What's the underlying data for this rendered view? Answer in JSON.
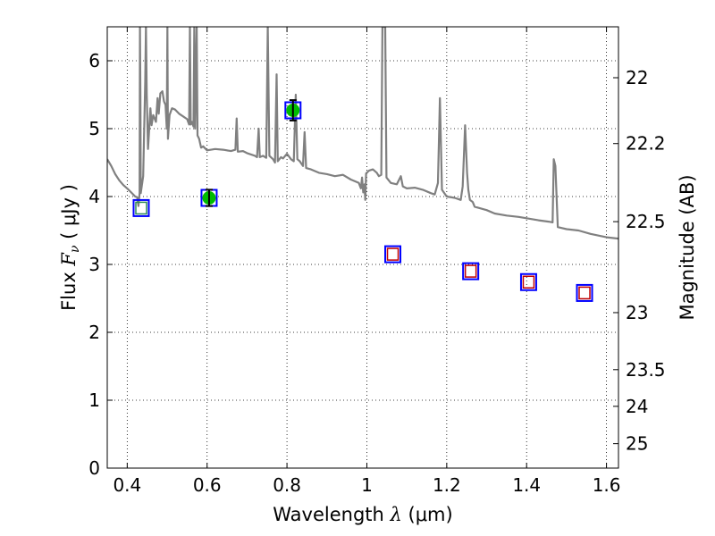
{
  "chart_data": {
    "type": "scatter",
    "xlabel": "Wavelength  λ (μm)",
    "ylabel": "Flux  F_ν  ( μJy )",
    "ylabel_parts": {
      "prefix": "Flux  ",
      "symbol": "F",
      "sub": "ν",
      "suffix": "  ( μJy )"
    },
    "xlabel_parts": {
      "prefix": "Wavelength  ",
      "symbol": "λ",
      "suffix": " (μm)"
    },
    "y2label": "Magnitude (AB)",
    "xlim": [
      0.35,
      1.63
    ],
    "ylim": [
      0,
      6.5
    ],
    "grid": true,
    "x_ticks": [
      0.4,
      0.6,
      0.8,
      1.0,
      1.2,
      1.4,
      1.6
    ],
    "x_tick_labels": [
      "0.4",
      "0.6",
      "0.8",
      "1",
      "1.2",
      "1.4",
      "1.6"
    ],
    "y_ticks": [
      0,
      1,
      2,
      3,
      4,
      5,
      6
    ],
    "y_tick_labels": [
      "0",
      "1",
      "2",
      "3",
      "4",
      "5",
      "6"
    ],
    "y2_ticks": [
      {
        "label": "22",
        "flux": 5.75
      },
      {
        "label": "22.2",
        "flux": 4.78
      },
      {
        "label": "22.5",
        "flux": 3.63
      },
      {
        "label": "23",
        "flux": 2.29
      },
      {
        "label": "23.5",
        "flux": 1.45
      },
      {
        "label": "24",
        "flux": 0.91
      },
      {
        "label": "25",
        "flux": 0.36
      }
    ],
    "series": [
      {
        "kind": "line",
        "color": "#808080",
        "points": [
          [
            0.35,
            4.55
          ],
          [
            0.36,
            4.45
          ],
          [
            0.37,
            4.33
          ],
          [
            0.38,
            4.24
          ],
          [
            0.39,
            4.17
          ],
          [
            0.4,
            4.12
          ],
          [
            0.41,
            4.06
          ],
          [
            0.42,
            4.0
          ],
          [
            0.425,
            3.99
          ],
          [
            0.428,
            3.86
          ],
          [
            0.431,
            4.05
          ],
          [
            0.432,
            6.5
          ],
          [
            0.433,
            5.5
          ],
          [
            0.434,
            4.05
          ],
          [
            0.44,
            4.3
          ],
          [
            0.445,
            5.7
          ],
          [
            0.447,
            6.5
          ],
          [
            0.449,
            5.5
          ],
          [
            0.452,
            4.7
          ],
          [
            0.458,
            5.3
          ],
          [
            0.461,
            5.05
          ],
          [
            0.465,
            5.2
          ],
          [
            0.472,
            5.1
          ],
          [
            0.476,
            5.45
          ],
          [
            0.479,
            5.22
          ],
          [
            0.483,
            5.52
          ],
          [
            0.488,
            5.55
          ],
          [
            0.492,
            5.4
          ],
          [
            0.496,
            5.35
          ],
          [
            0.499,
            5.0
          ],
          [
            0.5005,
            6.5
          ],
          [
            0.502,
            4.85
          ],
          [
            0.506,
            5.2
          ],
          [
            0.512,
            5.3
          ],
          [
            0.52,
            5.28
          ],
          [
            0.53,
            5.22
          ],
          [
            0.54,
            5.18
          ],
          [
            0.55,
            5.14
          ],
          [
            0.555,
            5.06
          ],
          [
            0.557,
            6.5
          ],
          [
            0.559,
            5.06
          ],
          [
            0.562,
            5.1
          ],
          [
            0.566,
            5.03
          ],
          [
            0.568,
            6.5
          ],
          [
            0.57,
            5.0
          ],
          [
            0.574,
            6.5
          ],
          [
            0.576,
            4.9
          ],
          [
            0.58,
            4.85
          ],
          [
            0.585,
            4.72
          ],
          [
            0.59,
            4.74
          ],
          [
            0.6,
            4.68
          ],
          [
            0.62,
            4.7
          ],
          [
            0.64,
            4.69
          ],
          [
            0.66,
            4.67
          ],
          [
            0.671,
            4.69
          ],
          [
            0.674,
            5.15
          ],
          [
            0.677,
            4.66
          ],
          [
            0.69,
            4.67
          ],
          [
            0.7,
            4.64
          ],
          [
            0.71,
            4.62
          ],
          [
            0.72,
            4.6
          ],
          [
            0.725,
            4.58
          ],
          [
            0.729,
            5.0
          ],
          [
            0.732,
            4.58
          ],
          [
            0.74,
            4.6
          ],
          [
            0.748,
            4.57
          ],
          [
            0.752,
            6.5
          ],
          [
            0.756,
            4.6
          ],
          [
            0.765,
            4.55
          ],
          [
            0.77,
            4.5
          ],
          [
            0.774,
            5.8
          ],
          [
            0.777,
            4.52
          ],
          [
            0.785,
            4.58
          ],
          [
            0.79,
            4.56
          ],
          [
            0.8,
            4.63
          ],
          [
            0.81,
            4.55
          ],
          [
            0.817,
            4.52
          ],
          [
            0.822,
            5.5
          ],
          [
            0.826,
            4.55
          ],
          [
            0.832,
            4.52
          ],
          [
            0.84,
            4.45
          ],
          [
            0.844,
            4.95
          ],
          [
            0.848,
            4.42
          ],
          [
            0.86,
            4.4
          ],
          [
            0.88,
            4.35
          ],
          [
            0.9,
            4.33
          ],
          [
            0.92,
            4.3
          ],
          [
            0.94,
            4.32
          ],
          [
            0.96,
            4.25
          ],
          [
            0.98,
            4.2
          ],
          [
            0.985,
            4.12
          ],
          [
            0.988,
            4.28
          ],
          [
            0.991,
            4.06
          ],
          [
            0.994,
            4.18
          ],
          [
            0.996,
            3.95
          ],
          [
            0.998,
            4.34
          ],
          [
            1.005,
            4.38
          ],
          [
            1.015,
            4.4
          ],
          [
            1.025,
            4.35
          ],
          [
            1.03,
            4.3
          ],
          [
            1.036,
            4.32
          ],
          [
            1.039,
            6.5
          ],
          [
            1.046,
            6.5
          ],
          [
            1.049,
            4.28
          ],
          [
            1.06,
            4.2
          ],
          [
            1.075,
            4.18
          ],
          [
            1.085,
            4.3
          ],
          [
            1.09,
            4.15
          ],
          [
            1.1,
            4.12
          ],
          [
            1.12,
            4.13
          ],
          [
            1.14,
            4.1
          ],
          [
            1.16,
            4.05
          ],
          [
            1.17,
            4.03
          ],
          [
            1.178,
            4.2
          ],
          [
            1.183,
            5.45
          ],
          [
            1.188,
            4.1
          ],
          [
            1.2,
            4.0
          ],
          [
            1.22,
            3.98
          ],
          [
            1.235,
            3.95
          ],
          [
            1.24,
            4.15
          ],
          [
            1.246,
            5.05
          ],
          [
            1.251,
            4.35
          ],
          [
            1.254,
            4.1
          ],
          [
            1.258,
            3.95
          ],
          [
            1.265,
            3.92
          ],
          [
            1.27,
            3.85
          ],
          [
            1.3,
            3.8
          ],
          [
            1.32,
            3.75
          ],
          [
            1.35,
            3.72
          ],
          [
            1.38,
            3.7
          ],
          [
            1.4,
            3.68
          ],
          [
            1.43,
            3.65
          ],
          [
            1.455,
            3.63
          ],
          [
            1.465,
            3.62
          ],
          [
            1.468,
            4.55
          ],
          [
            1.472,
            4.45
          ],
          [
            1.478,
            3.55
          ],
          [
            1.5,
            3.52
          ],
          [
            1.53,
            3.5
          ],
          [
            1.56,
            3.45
          ],
          [
            1.6,
            3.4
          ],
          [
            1.63,
            3.38
          ]
        ]
      },
      {
        "kind": "observed",
        "marker_box_color": "#0000ff",
        "fill_color": "#00bb00",
        "points": [
          {
            "x": 0.605,
            "y": 3.98,
            "yerr": 0.12
          },
          {
            "x": 0.815,
            "y": 5.27,
            "yerr": 0.15
          }
        ]
      },
      {
        "kind": "model-bands",
        "marker_box_color": "#0000ff",
        "inner_colors": [
          "#2e8b57",
          "#c00000"
        ],
        "points": [
          {
            "x": 0.435,
            "y": 3.83,
            "inner": "#2e8b57"
          },
          {
            "x": 1.065,
            "y": 3.15,
            "inner": "#c00000"
          },
          {
            "x": 1.26,
            "y": 2.9,
            "inner": "#c00000"
          },
          {
            "x": 1.405,
            "y": 2.74,
            "inner": "#c00000"
          },
          {
            "x": 1.545,
            "y": 2.58,
            "inner": "#c00000"
          }
        ]
      }
    ]
  }
}
